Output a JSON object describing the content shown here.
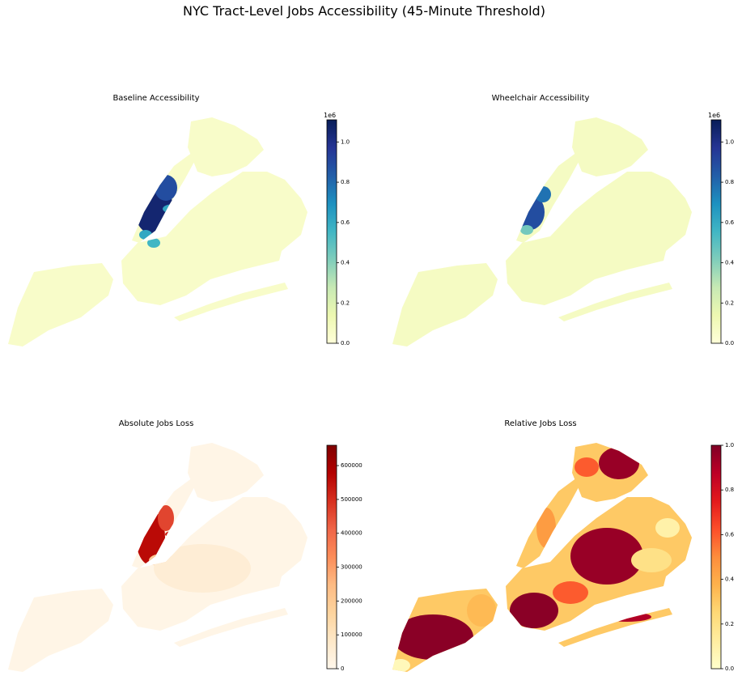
{
  "title": "NYC Tract-Level Jobs Accessibility (45-Minute Threshold)",
  "chart_data": [
    {
      "type": "choropleth",
      "title": "Baseline Accessibility",
      "colors": [
        "#ffffd9",
        "#edf8b1",
        "#c7e9b4",
        "#7fcdbb",
        "#41b6c4",
        "#1d91c0",
        "#225ea8",
        "#253494",
        "#081d58"
      ],
      "clim": [
        0,
        1.11
      ],
      "cticks": [
        {
          "value": 0,
          "label": "0.0"
        },
        0.2,
        0.4,
        0.6,
        0.8,
        {
          "value": 1,
          "label": "1.0"
        }
      ],
      "offset_label": "1e6"
    },
    {
      "type": "choropleth",
      "title": "Wheelchair Accessibility",
      "colors": [
        "#ffffd9",
        "#edf8b1",
        "#c7e9b4",
        "#7fcdbb",
        "#41b6c4",
        "#1d91c0",
        "#225ea8",
        "#253494",
        "#081d58"
      ],
      "clim": [
        0,
        1.11
      ],
      "cticks": [
        {
          "value": 0,
          "label": "0.0"
        },
        0.2,
        0.4,
        0.6,
        0.8,
        {
          "value": 1,
          "label": "1.0"
        }
      ],
      "offset_label": "1e6"
    },
    {
      "type": "choropleth",
      "title": "Absolute Jobs Loss",
      "colors": [
        "#fff7ec",
        "#fee8c8",
        "#fdd49e",
        "#fdbb84",
        "#fc8d59",
        "#ef6548",
        "#d7301f",
        "#b30000",
        "#7f0000"
      ],
      "clim": [
        0,
        660000
      ],
      "cticks": [
        0,
        100000,
        200000,
        300000,
        400000,
        500000,
        600000
      ]
    },
    {
      "type": "choropleth",
      "title": "Relative Jobs Loss",
      "colors": [
        "#ffffcc",
        "#ffeda0",
        "#fed976",
        "#feb24c",
        "#fd8d3c",
        "#fc4e2a",
        "#e31a1c",
        "#bd0026",
        "#800026"
      ],
      "clim": [
        0,
        1
      ],
      "cticks": [
        {
          "value": 0,
          "label": "0.0"
        },
        0.2,
        0.4,
        0.6,
        0.8,
        {
          "value": 1,
          "label": "1.0"
        }
      ]
    }
  ]
}
